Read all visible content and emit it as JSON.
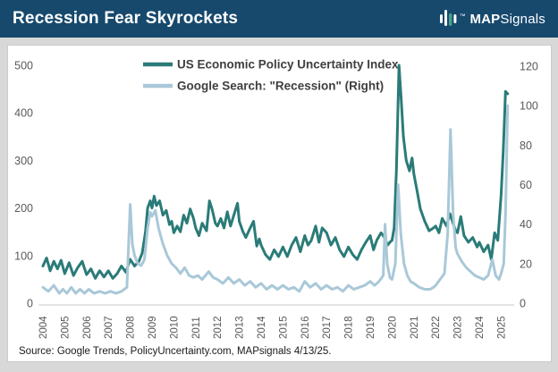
{
  "header": {
    "title": "Recession Fear Skyrockets",
    "brand": {
      "map": "MAP",
      "signals": "Signals",
      "tm": "™"
    }
  },
  "source_note": "Source: Google Trends, PolicyUncertainty.com, MAPsignals 4/13/25.",
  "colors": {
    "header_bg": "#17496d",
    "epu_line": "#2a7b78",
    "google_line": "#a9c8d8",
    "axis_text": "#595959",
    "legend_text": "#3f3f3f",
    "page_bg": "#d8d8d8",
    "baseline": "#d4d4d4",
    "logo_accent": "#49a08c"
  },
  "chart_data": {
    "type": "line",
    "title": "Recession Fear Skyrockets",
    "grid": false,
    "legend_position": "top-center-inside",
    "x_axis": {
      "labels": [
        "2004",
        "2005",
        "2006",
        "2007",
        "2008",
        "2009",
        "2010",
        "2011",
        "2012",
        "2013",
        "2014",
        "2015",
        "2016",
        "2017",
        "2018",
        "2019",
        "2020",
        "2021",
        "2022",
        "2023",
        "2024",
        "2025"
      ],
      "range": [
        2004,
        2025.4
      ]
    },
    "left_axis": {
      "ticks": [
        0,
        100,
        200,
        300,
        400,
        500
      ],
      "range": [
        0,
        500
      ]
    },
    "right_axis": {
      "ticks": [
        0,
        20,
        40,
        60,
        80,
        100,
        120
      ],
      "range": [
        0,
        120
      ]
    },
    "series": [
      {
        "name": "US Economic Policy Uncertainty Index",
        "axis": "left",
        "color": "#2a7b78",
        "points": [
          [
            2004.0,
            78
          ],
          [
            2004.17,
            95
          ],
          [
            2004.33,
            68
          ],
          [
            2004.5,
            88
          ],
          [
            2004.67,
            72
          ],
          [
            2004.83,
            90
          ],
          [
            2005.0,
            62
          ],
          [
            2005.2,
            85
          ],
          [
            2005.4,
            58
          ],
          [
            2005.6,
            75
          ],
          [
            2005.8,
            88
          ],
          [
            2006.0,
            60
          ],
          [
            2006.2,
            72
          ],
          [
            2006.4,
            52
          ],
          [
            2006.6,
            68
          ],
          [
            2006.8,
            55
          ],
          [
            2007.0,
            68
          ],
          [
            2007.2,
            52
          ],
          [
            2007.4,
            62
          ],
          [
            2007.6,
            78
          ],
          [
            2007.8,
            65
          ],
          [
            2008.0,
            92
          ],
          [
            2008.2,
            78
          ],
          [
            2008.4,
            88
          ],
          [
            2008.55,
            105
          ],
          [
            2008.7,
            150
          ],
          [
            2008.8,
            200
          ],
          [
            2008.92,
            215
          ],
          [
            2009.0,
            200
          ],
          [
            2009.1,
            225
          ],
          [
            2009.2,
            205
          ],
          [
            2009.35,
            215
          ],
          [
            2009.5,
            185
          ],
          [
            2009.65,
            195
          ],
          [
            2009.8,
            165
          ],
          [
            2009.9,
            172
          ],
          [
            2010.0,
            148
          ],
          [
            2010.15,
            162
          ],
          [
            2010.3,
            150
          ],
          [
            2010.45,
            185
          ],
          [
            2010.6,
            168
          ],
          [
            2010.75,
            198
          ],
          [
            2010.9,
            178
          ],
          [
            2011.0,
            158
          ],
          [
            2011.15,
            142
          ],
          [
            2011.3,
            168
          ],
          [
            2011.5,
            152
          ],
          [
            2011.63,
            215
          ],
          [
            2011.75,
            198
          ],
          [
            2011.9,
            168
          ],
          [
            2012.0,
            162
          ],
          [
            2012.15,
            178
          ],
          [
            2012.3,
            158
          ],
          [
            2012.45,
            192
          ],
          [
            2012.6,
            162
          ],
          [
            2012.75,
            185
          ],
          [
            2012.92,
            210
          ],
          [
            2013.0,
            172
          ],
          [
            2013.15,
            152
          ],
          [
            2013.3,
            138
          ],
          [
            2013.5,
            158
          ],
          [
            2013.65,
            172
          ],
          [
            2013.8,
            120
          ],
          [
            2013.92,
            135
          ],
          [
            2014.0,
            122
          ],
          [
            2014.2,
            102
          ],
          [
            2014.4,
            92
          ],
          [
            2014.6,
            112
          ],
          [
            2014.8,
            98
          ],
          [
            2015.0,
            118
          ],
          [
            2015.2,
            98
          ],
          [
            2015.4,
            122
          ],
          [
            2015.6,
            138
          ],
          [
            2015.8,
            108
          ],
          [
            2016.0,
            142
          ],
          [
            2016.15,
            122
          ],
          [
            2016.3,
            132
          ],
          [
            2016.5,
            162
          ],
          [
            2016.65,
            128
          ],
          [
            2016.8,
            158
          ],
          [
            2016.92,
            152
          ],
          [
            2017.0,
            148
          ],
          [
            2017.2,
            122
          ],
          [
            2017.4,
            138
          ],
          [
            2017.6,
            112
          ],
          [
            2017.8,
            98
          ],
          [
            2018.0,
            118
          ],
          [
            2018.2,
            102
          ],
          [
            2018.4,
            92
          ],
          [
            2018.6,
            112
          ],
          [
            2018.8,
            128
          ],
          [
            2019.0,
            142
          ],
          [
            2019.15,
            112
          ],
          [
            2019.3,
            132
          ],
          [
            2019.5,
            148
          ],
          [
            2019.65,
            138
          ],
          [
            2019.8,
            122
          ],
          [
            2019.9,
            128
          ],
          [
            2020.0,
            132
          ],
          [
            2020.1,
            158
          ],
          [
            2020.2,
            280
          ],
          [
            2020.32,
            500
          ],
          [
            2020.42,
            430
          ],
          [
            2020.52,
            350
          ],
          [
            2020.65,
            300
          ],
          [
            2020.8,
            278
          ],
          [
            2020.92,
            305
          ],
          [
            2021.0,
            272
          ],
          [
            2021.15,
            235
          ],
          [
            2021.3,
            198
          ],
          [
            2021.5,
            172
          ],
          [
            2021.7,
            152
          ],
          [
            2021.9,
            158
          ],
          [
            2022.0,
            162
          ],
          [
            2022.15,
            148
          ],
          [
            2022.3,
            178
          ],
          [
            2022.5,
            162
          ],
          [
            2022.65,
            188
          ],
          [
            2022.8,
            168
          ],
          [
            2022.92,
            152
          ],
          [
            2023.0,
            148
          ],
          [
            2023.15,
            182
          ],
          [
            2023.3,
            142
          ],
          [
            2023.5,
            128
          ],
          [
            2023.7,
            138
          ],
          [
            2023.9,
            118
          ],
          [
            2024.0,
            128
          ],
          [
            2024.2,
            108
          ],
          [
            2024.4,
            122
          ],
          [
            2024.55,
            92
          ],
          [
            2024.7,
            148
          ],
          [
            2024.85,
            132
          ],
          [
            2025.0,
            228
          ],
          [
            2025.1,
            320
          ],
          [
            2025.2,
            445
          ],
          [
            2025.3,
            440
          ]
        ]
      },
      {
        "name": "Google Search: \"Recession\" (Right)",
        "axis": "right",
        "color": "#a9c8d8",
        "points": [
          [
            2004.0,
            8
          ],
          [
            2004.25,
            6
          ],
          [
            2004.5,
            9
          ],
          [
            2004.75,
            5
          ],
          [
            2004.92,
            7
          ],
          [
            2005.1,
            5
          ],
          [
            2005.3,
            8
          ],
          [
            2005.5,
            5
          ],
          [
            2005.7,
            7
          ],
          [
            2005.9,
            5
          ],
          [
            2006.1,
            7
          ],
          [
            2006.35,
            5
          ],
          [
            2006.6,
            6
          ],
          [
            2006.85,
            5
          ],
          [
            2007.1,
            6
          ],
          [
            2007.35,
            5
          ],
          [
            2007.6,
            6
          ],
          [
            2007.85,
            8
          ],
          [
            2008.0,
            50
          ],
          [
            2008.1,
            30
          ],
          [
            2008.2,
            24
          ],
          [
            2008.35,
            20
          ],
          [
            2008.5,
            19
          ],
          [
            2008.65,
            22
          ],
          [
            2008.8,
            38
          ],
          [
            2008.92,
            46
          ],
          [
            2009.0,
            44
          ],
          [
            2009.15,
            47
          ],
          [
            2009.3,
            38
          ],
          [
            2009.5,
            30
          ],
          [
            2009.7,
            24
          ],
          [
            2009.9,
            20
          ],
          [
            2010.1,
            18
          ],
          [
            2010.3,
            15
          ],
          [
            2010.5,
            18
          ],
          [
            2010.7,
            14
          ],
          [
            2010.9,
            13
          ],
          [
            2011.1,
            14
          ],
          [
            2011.3,
            12
          ],
          [
            2011.6,
            16
          ],
          [
            2011.8,
            13
          ],
          [
            2012.0,
            12
          ],
          [
            2012.25,
            10
          ],
          [
            2012.5,
            13
          ],
          [
            2012.75,
            10
          ],
          [
            2013.0,
            12
          ],
          [
            2013.25,
            9
          ],
          [
            2013.5,
            11
          ],
          [
            2013.75,
            8
          ],
          [
            2014.0,
            10
          ],
          [
            2014.25,
            7
          ],
          [
            2014.5,
            9
          ],
          [
            2014.75,
            7
          ],
          [
            2015.0,
            9
          ],
          [
            2015.25,
            7
          ],
          [
            2015.5,
            8
          ],
          [
            2015.75,
            6
          ],
          [
            2016.0,
            11
          ],
          [
            2016.25,
            8
          ],
          [
            2016.5,
            10
          ],
          [
            2016.75,
            7
          ],
          [
            2017.0,
            9
          ],
          [
            2017.25,
            7
          ],
          [
            2017.5,
            8
          ],
          [
            2017.75,
            6
          ],
          [
            2018.0,
            9
          ],
          [
            2018.25,
            7
          ],
          [
            2018.5,
            8
          ],
          [
            2018.75,
            9
          ],
          [
            2019.0,
            11
          ],
          [
            2019.2,
            9
          ],
          [
            2019.4,
            11
          ],
          [
            2019.6,
            14
          ],
          [
            2019.68,
            40
          ],
          [
            2019.78,
            20
          ],
          [
            2019.9,
            13
          ],
          [
            2020.0,
            12
          ],
          [
            2020.15,
            20
          ],
          [
            2020.28,
            60
          ],
          [
            2020.4,
            35
          ],
          [
            2020.55,
            20
          ],
          [
            2020.7,
            14
          ],
          [
            2020.85,
            11
          ],
          [
            2021.0,
            10
          ],
          [
            2021.25,
            8
          ],
          [
            2021.5,
            7
          ],
          [
            2021.75,
            7
          ],
          [
            2021.9,
            8
          ],
          [
            2022.0,
            9
          ],
          [
            2022.2,
            12
          ],
          [
            2022.4,
            15
          ],
          [
            2022.55,
            35
          ],
          [
            2022.68,
            88
          ],
          [
            2022.8,
            45
          ],
          [
            2022.92,
            28
          ],
          [
            2023.0,
            25
          ],
          [
            2023.2,
            21
          ],
          [
            2023.4,
            18
          ],
          [
            2023.6,
            16
          ],
          [
            2023.8,
            14
          ],
          [
            2024.0,
            13
          ],
          [
            2024.2,
            12
          ],
          [
            2024.4,
            14
          ],
          [
            2024.6,
            22
          ],
          [
            2024.75,
            14
          ],
          [
            2024.9,
            12
          ],
          [
            2025.0,
            15
          ],
          [
            2025.12,
            20
          ],
          [
            2025.2,
            45
          ],
          [
            2025.3,
            100
          ]
        ]
      }
    ]
  }
}
